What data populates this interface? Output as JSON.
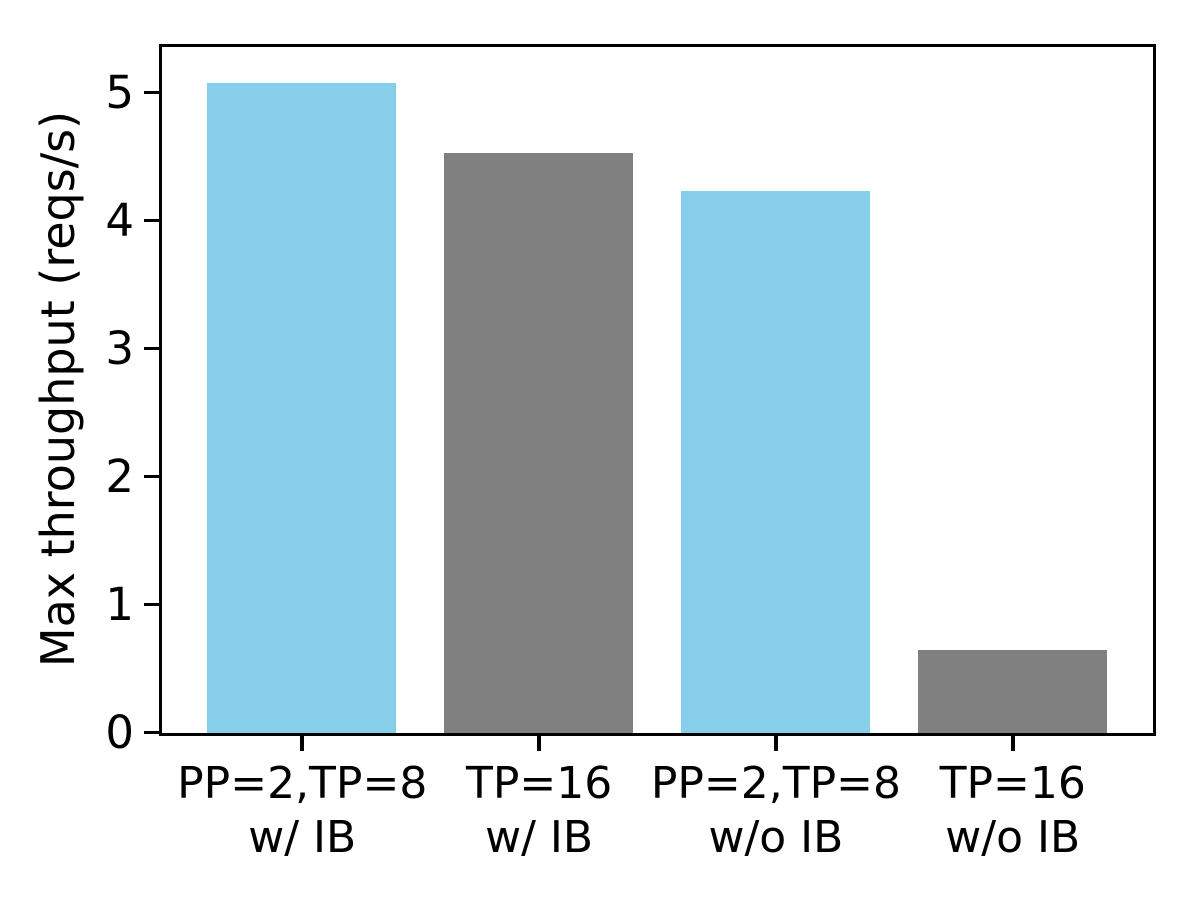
{
  "figure": {
    "background": "#ffffff",
    "text_color": "#000000",
    "spine_color": "#000000"
  },
  "chart_data": {
    "type": "bar",
    "title": "",
    "xlabel": "",
    "ylabel": "Max throughput (reqs/s)",
    "categories": [
      "PP=2,TP=8 w/ IB",
      "TP=16 w/ IB",
      "PP=2,TP=8 w/o IB",
      "TP=16 w/o IB"
    ],
    "category_lines": [
      [
        "PP=2,TP=8",
        "w/ IB"
      ],
      [
        "TP=16",
        "w/ IB"
      ],
      [
        "PP=2,TP=8",
        "w/o IB"
      ],
      [
        "TP=16",
        "w/o IB"
      ]
    ],
    "values": [
      5.08,
      4.53,
      4.23,
      0.65
    ],
    "bar_colors": [
      "#87ceeb",
      "#808080",
      "#87ceeb",
      "#808080"
    ],
    "yticks": [
      0,
      1,
      2,
      3,
      4,
      5
    ],
    "ylim": [
      0,
      5.35
    ],
    "bar_width_fraction": 0.8,
    "grid": false,
    "legend": null
  }
}
